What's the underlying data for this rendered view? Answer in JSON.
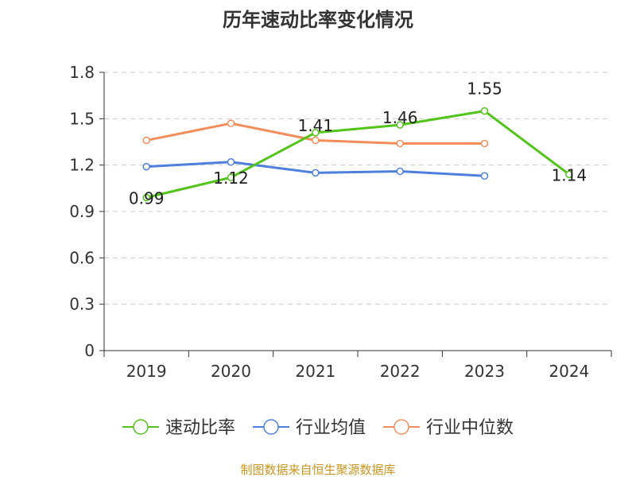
{
  "chart_data": {
    "type": "line",
    "title": "历年速动比率变化情况",
    "categories": [
      "2019",
      "2020",
      "2021",
      "2022",
      "2023",
      "2024"
    ],
    "ylim": [
      0,
      1.8
    ],
    "yticks": [
      "0",
      "0.3",
      "0.6",
      "0.9",
      "1.2",
      "1.5",
      "1.8"
    ],
    "grid": true,
    "legend_position": "bottom",
    "series": [
      {
        "name": "速动比率",
        "color": "#52c41a",
        "values": [
          0.99,
          1.12,
          1.41,
          1.46,
          1.55,
          1.14
        ],
        "labels": [
          "0.99",
          "1.12",
          "1.41",
          "1.46",
          "1.55",
          "1.14"
        ]
      },
      {
        "name": "行业均值",
        "color": "#4f7fdc",
        "values": [
          1.19,
          1.22,
          1.15,
          1.16,
          1.13,
          null
        ]
      },
      {
        "name": "行业中位数",
        "color": "#f58d5a",
        "values": [
          1.36,
          1.47,
          1.36,
          1.34,
          1.34,
          null
        ]
      }
    ],
    "source": "制图数据来自恒生聚源数据库"
  }
}
